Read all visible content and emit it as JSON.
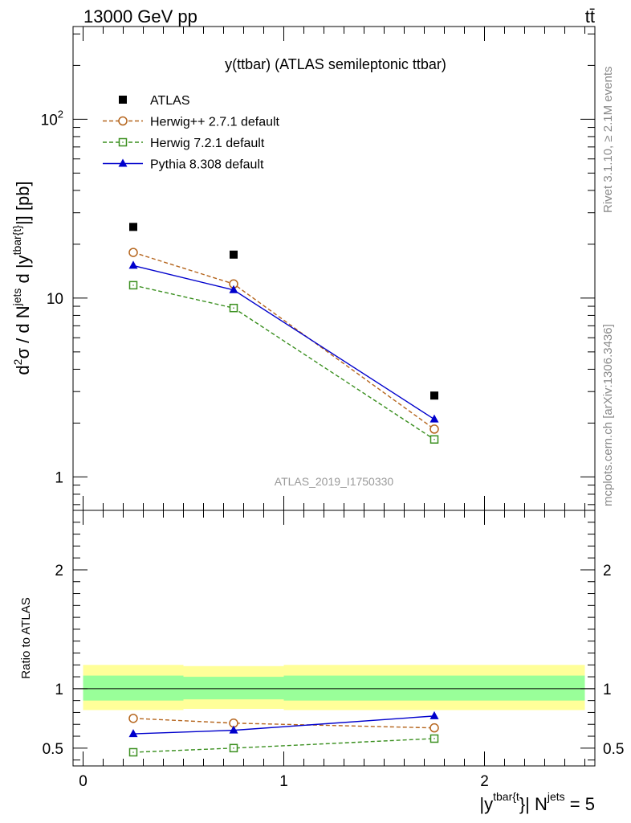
{
  "header": {
    "process": "13000 GeV pp",
    "final_state": "tt̄"
  },
  "side_labels": {
    "rivet": "Rivet 3.1.10, ≥ 2.1M events",
    "source": "mcplots.cern.ch [arXiv:1306.3436]"
  },
  "chart_data": [
    {
      "type": "scatter",
      "title": "y(ttbar) (ATLAS semileptonic ttbar)",
      "watermark": "ATLAS_2019_I1750330",
      "ylabel": "d²σ / d N^jets d |y^tbar{t}| [pb]",
      "yscale": "log",
      "ylim": [
        0.65,
        330
      ],
      "xlim": [
        -0.05,
        2.55
      ],
      "y_ticks": [
        {
          "value": 1,
          "label": "1"
        },
        {
          "value": 10,
          "label": "10"
        },
        {
          "value": 100,
          "label": "10",
          "sup": "2"
        }
      ],
      "legend_position": "top-left",
      "series": [
        {
          "name": "ATLAS",
          "marker": "square-filled",
          "line": "none",
          "color": "#000000",
          "x": [
            0.25,
            0.75,
            1.75
          ],
          "y": [
            25.0,
            17.5,
            2.85
          ]
        },
        {
          "name": "Herwig++ 2.7.1 default",
          "marker": "circle-open",
          "line": "dashed",
          "color": "#b5651d",
          "x": [
            0.25,
            0.75,
            1.75
          ],
          "y": [
            18.0,
            12.0,
            1.85
          ]
        },
        {
          "name": "Herwig 7.2.1 default",
          "marker": "square-open",
          "line": "dashed",
          "color": "#3a8f1f",
          "x": [
            0.25,
            0.75,
            1.75
          ],
          "y": [
            11.8,
            8.8,
            1.62
          ]
        },
        {
          "name": "Pythia 8.308 default",
          "marker": "triangle-filled",
          "line": "solid",
          "color": "#0000cc",
          "x": [
            0.25,
            0.75,
            1.75
          ],
          "y": [
            15.2,
            11.1,
            2.1
          ]
        }
      ]
    },
    {
      "type": "line",
      "ylabel": "Ratio to ATLAS",
      "xlabel": "|y^tbar{t}| N^jets = 5",
      "ylim": [
        0.35,
        2.5
      ],
      "xlim": [
        -0.05,
        2.55
      ],
      "x_ticks": [
        0,
        1,
        2
      ],
      "y_ticks": [
        {
          "value": 0.5,
          "label": "0.5"
        },
        {
          "value": 1,
          "label": "1"
        },
        {
          "value": 2,
          "label": "2"
        }
      ],
      "reference_line": 1.0,
      "bands": [
        {
          "name": "outer",
          "color": "#ffff99",
          "segments": [
            {
              "x0": 0,
              "x1": 0.5,
              "lo": 0.82,
              "hi": 1.2
            },
            {
              "x0": 0.5,
              "x1": 1.0,
              "lo": 0.83,
              "hi": 1.19
            },
            {
              "x0": 1.0,
              "x1": 2.5,
              "lo": 0.82,
              "hi": 1.2
            }
          ]
        },
        {
          "name": "inner",
          "color": "#99ff99",
          "segments": [
            {
              "x0": 0,
              "x1": 0.5,
              "lo": 0.9,
              "hi": 1.11
            },
            {
              "x0": 0.5,
              "x1": 1.0,
              "lo": 0.91,
              "hi": 1.1
            },
            {
              "x0": 1.0,
              "x1": 2.5,
              "lo": 0.9,
              "hi": 1.11
            }
          ]
        }
      ],
      "series": [
        {
          "name": "Herwig++ 2.7.1 default",
          "marker": "circle-open",
          "line": "dashed",
          "color": "#b5651d",
          "x": [
            0.25,
            0.75,
            1.75
          ],
          "y": [
            0.75,
            0.71,
            0.67
          ]
        },
        {
          "name": "Herwig 7.2.1 default",
          "marker": "square-open",
          "line": "dashed",
          "color": "#3a8f1f",
          "x": [
            0.25,
            0.75,
            1.75
          ],
          "y": [
            0.465,
            0.5,
            0.58
          ]
        },
        {
          "name": "Pythia 8.308 default",
          "marker": "triangle-filled",
          "line": "solid",
          "color": "#0000cc",
          "x": [
            0.25,
            0.75,
            1.75
          ],
          "y": [
            0.62,
            0.65,
            0.77
          ]
        }
      ]
    }
  ]
}
